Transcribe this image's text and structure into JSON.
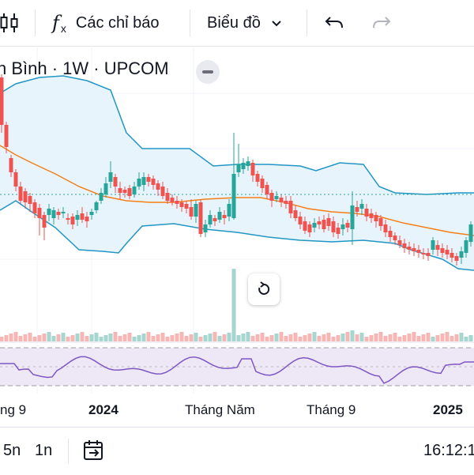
{
  "toolbar": {
    "indicators_label": "Các chỉ báo",
    "chart_type_label": "Biểu đồ"
  },
  "legend": {
    "symbol_text": "n Bình · 1W · UPCOM"
  },
  "time_axis": {
    "labels": [
      "ng 9",
      "2024",
      "Tháng Năm",
      "Tháng 9",
      "2025"
    ]
  },
  "bottom_bar": {
    "range_5n": "5n",
    "range_1n": "1n",
    "clock": "16:12:1"
  },
  "colors": {
    "up": "#26a69a",
    "down": "#ef5350",
    "bollinger": "#2196c4",
    "bollinger_fill": "#e8f4fb",
    "ma": "#f57f17",
    "rsi_line": "#7e57c2",
    "rsi_fill": "#ede7f6"
  },
  "icons": {
    "chart_style": "candles-icon",
    "indicators": "fx-icon",
    "dropdown": "chevron-down-icon",
    "undo": "undo-icon",
    "redo": "redo-icon",
    "minimize": "minus-icon",
    "reset": "reset-icon",
    "date_range": "calendar-arrow-icon"
  }
}
